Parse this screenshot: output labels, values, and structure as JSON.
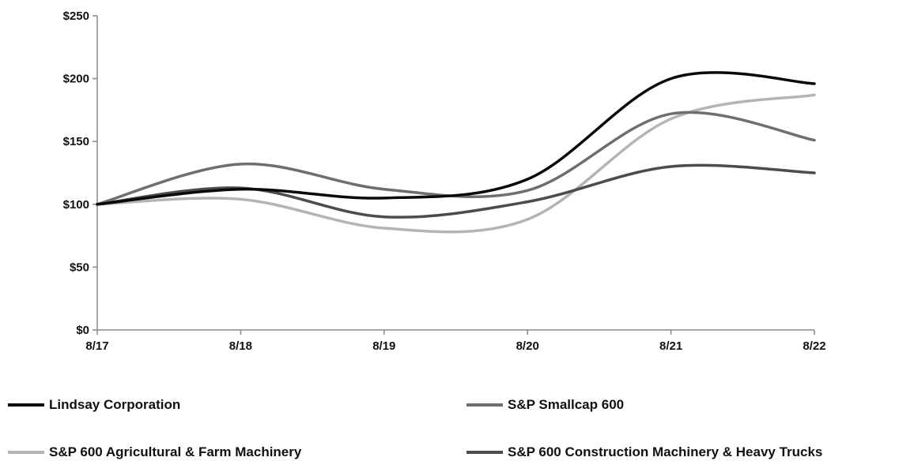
{
  "chart_data": {
    "type": "line",
    "title": "",
    "xlabel": "",
    "ylabel": "",
    "categories": [
      "8/17",
      "8/18",
      "8/19",
      "8/20",
      "8/21",
      "8/22"
    ],
    "y_ticks": [
      "$0",
      "$50",
      "$100",
      "$150",
      "$200",
      "$250"
    ],
    "ylim": [
      0,
      250
    ],
    "grid": false,
    "legend_position": "bottom",
    "series": [
      {
        "name": "Lindsay Corporation",
        "color": "#0a0a0a",
        "values": [
          100,
          112,
          105,
          120,
          200,
          196
        ]
      },
      {
        "name": "S&P Smallcap 600",
        "color": "#6e6e6e",
        "values": [
          100,
          132,
          112,
          111,
          172,
          151
        ]
      },
      {
        "name": "S&P 600 Agricultural & Farm Machinery",
        "color": "#b4b4b4",
        "values": [
          100,
          104,
          81,
          88,
          168,
          187
        ]
      },
      {
        "name": "S&P 600 Construction Machinery & Heavy Trucks",
        "color": "#4c4c4c",
        "values": [
          100,
          113,
          90,
          102,
          130,
          125
        ]
      }
    ]
  }
}
